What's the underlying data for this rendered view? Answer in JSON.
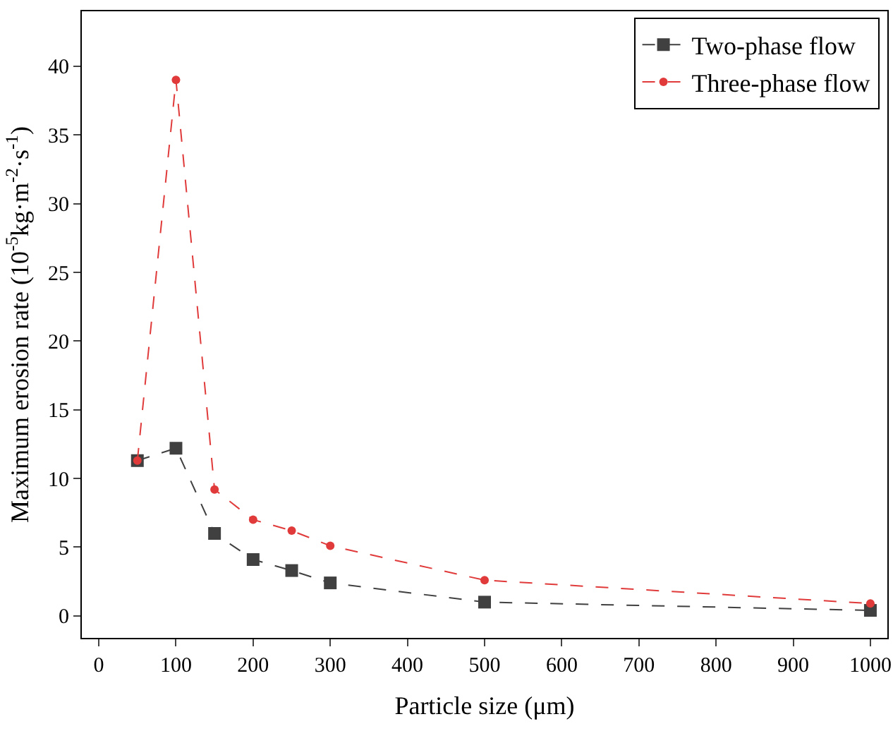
{
  "chart_data": {
    "type": "line",
    "xlabel": "Particle size (μm)",
    "ylabel": "Maximum erosion rate (10$^{-5}$kg·m$^{-2}$·s$^{-1}$)",
    "x": [
      50,
      100,
      150,
      200,
      250,
      300,
      500,
      1000
    ],
    "series": [
      {
        "name": "Two-phase flow",
        "color": "#404040",
        "marker": "square",
        "values": [
          11.3,
          12.2,
          6.0,
          4.1,
          3.3,
          2.4,
          1.0,
          0.4
        ]
      },
      {
        "name": "Three-phase flow",
        "color": "#e03a3a",
        "marker": "circle",
        "values": [
          11.3,
          39.0,
          9.2,
          7.0,
          6.2,
          5.1,
          2.6,
          0.9
        ]
      }
    ],
    "xlim": [
      -22,
      1022
    ],
    "xticks": [
      0,
      100,
      200,
      300,
      400,
      500,
      600,
      700,
      800,
      900,
      1000
    ],
    "ylim": [
      -1.6,
      44
    ],
    "yticks": [
      0,
      5,
      10,
      15,
      20,
      25,
      30,
      35,
      40
    ],
    "grid": false,
    "legend": "top right",
    "line_style": "dashed"
  }
}
